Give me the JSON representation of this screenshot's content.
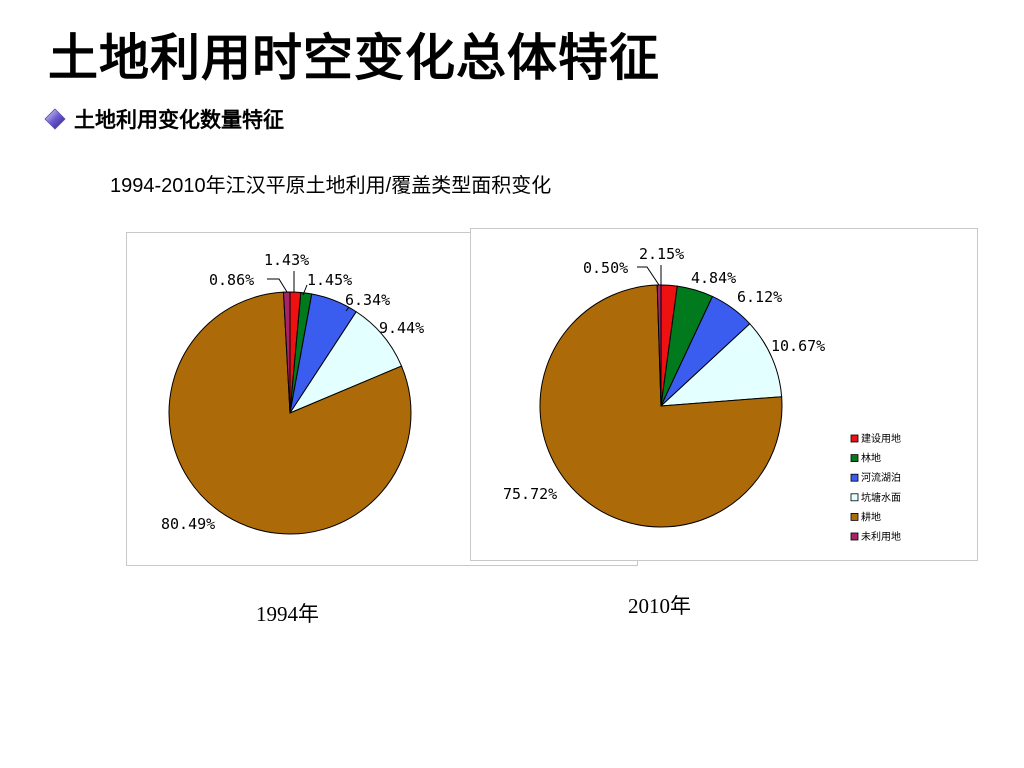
{
  "slide": {
    "title": "土地利用时空变化总体特征",
    "bullet": "土地利用变化数量特征"
  },
  "chart_heading": "1994-2010年江汉平原土地利用/覆盖类型面积变化",
  "captions": {
    "left": "1994年",
    "right": "2010年"
  },
  "colors": {
    "construction": "#ee1111",
    "forest": "#007a1c",
    "water": "#3a5df0",
    "pond": "#e3ffff",
    "cropland": "#ad6a08",
    "unused": "#a8246a"
  },
  "chart_data": [
    {
      "type": "pie",
      "categories": [
        "建设用地",
        "林地",
        "河流湖泊",
        "坑塘水面",
        "耕地",
        "未利用地"
      ],
      "values": [
        1.43,
        1.45,
        6.34,
        9.44,
        80.49,
        0.86
      ],
      "labels": [
        "1.43%",
        "1.45%",
        "6.34%",
        "9.44%",
        "80.49%",
        "0.86%"
      ],
      "unit": "%",
      "caption": "1994年"
    },
    {
      "type": "pie",
      "categories": [
        "建设用地",
        "林地",
        "河流湖泊",
        "坑塘水面",
        "耕地",
        "未利用地"
      ],
      "values": [
        2.15,
        4.84,
        6.12,
        10.67,
        75.72,
        0.5
      ],
      "labels": [
        "2.15%",
        "4.84%",
        "6.12%",
        "10.67%",
        "75.72%",
        "0.50%"
      ],
      "unit": "%",
      "caption": "2010年",
      "legend": {
        "position": "bottom-right",
        "items": [
          "建设用地",
          "林地",
          "河流湖泊",
          "坑塘水面",
          "耕地",
          "未利用地"
        ]
      }
    }
  ]
}
